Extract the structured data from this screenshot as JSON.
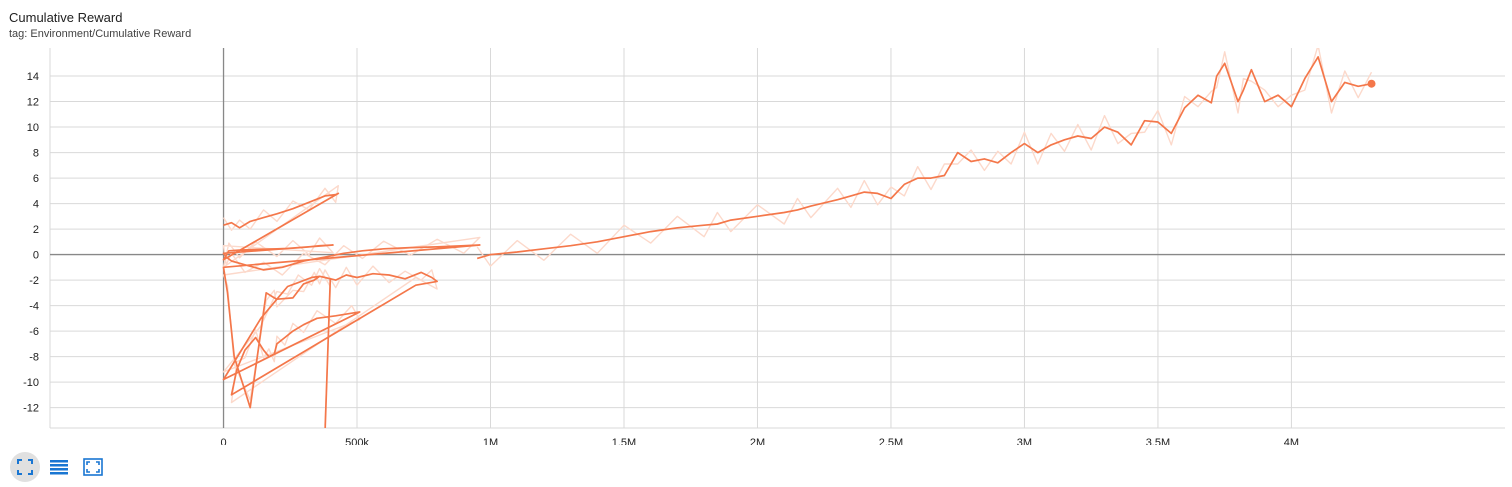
{
  "header": {
    "title": "Cumulative Reward",
    "subtitle": "tag: Environment/Cumulative Reward"
  },
  "toolbar": {
    "buttons": [
      {
        "name": "fit-domain-button",
        "icon": "expand-corners-icon",
        "active": true
      },
      {
        "name": "toggle-log-scale-button",
        "icon": "list-lines-icon",
        "active": false
      },
      {
        "name": "toggle-fullscreen-button",
        "icon": "fullscreen-frame-icon",
        "active": false
      }
    ]
  },
  "colors": {
    "series": "#f4774a",
    "series_raw": "#fcd9cb",
    "grid": "#d9d9d9",
    "axis": "#888888",
    "icon": "#1976d2"
  },
  "chart_data": {
    "type": "line",
    "title": "",
    "xlabel": "",
    "ylabel": "",
    "xlim": [
      -650000,
      4800000
    ],
    "ylim": [
      -13.6,
      16.2
    ],
    "grid": true,
    "x_ticks": [
      0,
      500000,
      1000000,
      1500000,
      2000000,
      2500000,
      3000000,
      3500000,
      4000000
    ],
    "x_tick_labels": [
      "0",
      "500k",
      "1M",
      "1.5M",
      "2M",
      "2.5M",
      "3M",
      "3.5M",
      "4M"
    ],
    "y_ticks": [
      -12,
      -10,
      -8,
      -6,
      -4,
      -2,
      0,
      2,
      4,
      6,
      8,
      10,
      12,
      14
    ],
    "y_tick_labels": [
      "-12",
      "-10",
      "-8",
      "-6",
      "-4",
      "-2",
      "0",
      "2",
      "4",
      "6",
      "8",
      "10",
      "12",
      "14"
    ],
    "series": [
      {
        "smoothed": true,
        "x": [
          0,
          30000,
          60000,
          100000,
          150000,
          200000,
          260000,
          320000,
          380000,
          420000,
          430000,
          0,
          20000,
          60000,
          120000,
          200000,
          260000,
          320000,
          360000,
          410000,
          0,
          10000,
          30000,
          80000,
          150000,
          220000,
          300000,
          380000,
          450000,
          520000,
          600000,
          700000,
          800000,
          900000,
          960000,
          0,
          15000,
          40000,
          100000,
          160000,
          190000,
          200000,
          260000,
          300000,
          340000,
          360000,
          380000,
          420000,
          460000,
          500000,
          560000,
          620000,
          680000,
          740000,
          780000,
          800000,
          720000,
          30000,
          50000,
          80000,
          120000,
          150000,
          170000,
          190000,
          200000,
          230000,
          260000,
          300000,
          350000,
          420000,
          480000,
          510000,
          0,
          140000,
          200000,
          240000,
          280000,
          330000,
          360000,
          400000,
          380000
        ],
        "y": [
          2.3,
          2.5,
          2.1,
          2.6,
          2.9,
          3.2,
          3.6,
          4.1,
          4.6,
          4.7,
          4.8,
          -0.4,
          0.3,
          0.35,
          0.4,
          0.45,
          0.5,
          0.6,
          0.7,
          0.75,
          0.1,
          -0.2,
          -0.5,
          -0.8,
          -1.2,
          -1.0,
          -0.5,
          -0.2,
          0.1,
          0.3,
          0.45,
          0.55,
          0.6,
          0.7,
          0.75,
          -1.0,
          -3.0,
          -8.0,
          -12.0,
          -3.0,
          -3.4,
          -3.5,
          -3.4,
          -2.3,
          -2.0,
          -1.7,
          -1.8,
          -2.0,
          -1.6,
          -1.8,
          -1.5,
          -1.6,
          -1.9,
          -1.4,
          -1.8,
          -2.1,
          -2.4,
          -11.0,
          -9.0,
          -7.5,
          -6.5,
          -7.5,
          -8.0,
          -7.8,
          -7.0,
          -6.5,
          -6.0,
          -5.5,
          -5.0,
          -4.8,
          -4.6,
          -4.5,
          -9.8,
          -5.0,
          -3.5,
          -2.5,
          -2.2,
          -1.8,
          -1.7,
          -1.9,
          -14.0
        ]
      },
      {
        "smoothed": true,
        "x": [
          950000,
          1000000,
          1100000,
          1200000,
          1300000,
          1400000,
          1500000,
          1600000,
          1700000,
          1800000,
          1850000,
          1900000,
          2000000,
          2100000,
          2150000,
          2200000,
          2300000,
          2350000,
          2400000,
          2450000,
          2500000,
          2550000,
          2600000,
          2650000,
          2700000,
          2750000,
          2800000,
          2850000,
          2900000,
          2950000,
          3000000,
          3050000,
          3100000,
          3150000,
          3200000,
          3250000,
          3300000,
          3350000,
          3400000,
          3450000,
          3500000,
          3550000,
          3600000,
          3650000,
          3700000,
          3720000,
          3750000,
          3800000,
          3820000,
          3850000,
          3900000,
          3950000,
          4000000,
          4050000,
          4100000,
          4150000,
          4200000,
          4250000,
          4300000
        ],
        "y": [
          -0.3,
          0.0,
          0.2,
          0.45,
          0.7,
          1.0,
          1.4,
          1.8,
          2.1,
          2.3,
          2.4,
          2.7,
          3.0,
          3.3,
          3.5,
          3.8,
          4.3,
          4.6,
          4.9,
          4.8,
          4.4,
          5.5,
          6.0,
          6.0,
          6.2,
          8.0,
          7.3,
          7.5,
          7.2,
          8.0,
          8.7,
          8.0,
          8.6,
          9.0,
          9.3,
          9.1,
          10.0,
          9.6,
          8.6,
          10.5,
          10.4,
          9.5,
          11.5,
          12.5,
          11.9,
          14.0,
          15.0,
          12.0,
          12.9,
          14.5,
          12.0,
          12.5,
          11.6,
          13.8,
          15.5,
          12.0,
          13.5,
          13.2,
          13.4
        ]
      }
    ]
  }
}
